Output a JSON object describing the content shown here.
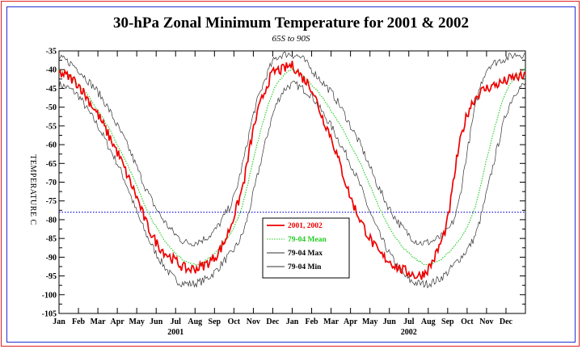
{
  "chart_data": {
    "type": "line",
    "title": "30-hPa Zonal Minimum Temperature for 2001 & 2002",
    "subtitle": "65S to 90S",
    "ylabel": "TEMPERATURE C",
    "xlabel": "",
    "ylim": [
      -105,
      -35
    ],
    "yticks": [
      -35,
      -40,
      -45,
      -50,
      -55,
      -60,
      -65,
      -70,
      -75,
      -80,
      -85,
      -90,
      -95,
      -100,
      -105
    ],
    "x_month_labels": [
      "Jan",
      "Feb",
      "Mar",
      "Apr",
      "May",
      "Jun",
      "Jul",
      "Aug",
      "Sep",
      "Oct",
      "Nov",
      "Dec",
      "Jan",
      "Feb",
      "Mar",
      "Apr",
      "May",
      "Jun",
      "Jul",
      "Aug",
      "Sep",
      "Oct",
      "Nov",
      "Dec"
    ],
    "year_labels": [
      "2001",
      "2002"
    ],
    "reference_line": -78,
    "legend_position": "center",
    "grid": false,
    "x_months": [
      0,
      0.5,
      1,
      1.5,
      2,
      2.5,
      3,
      3.5,
      4,
      4.5,
      5,
      5.5,
      6,
      6.5,
      7,
      7.5,
      8,
      8.5,
      9,
      9.5,
      10,
      10.5,
      11,
      11.5,
      12,
      12.5,
      13,
      13.5,
      14,
      14.5,
      15,
      15.5,
      16,
      16.5,
      17,
      17.5,
      18,
      18.5,
      19,
      19.5,
      20,
      20.5,
      21,
      21.5,
      22,
      22.5,
      23,
      23.5,
      24
    ],
    "series": [
      {
        "name": "2001, 2002",
        "color": "#ee0000",
        "style": "solid",
        "values": [
          -41,
          -42,
          -44,
          -48,
          -52,
          -57,
          -62,
          -68,
          -74,
          -81,
          -86,
          -89,
          -91,
          -93,
          -93,
          -92,
          -90,
          -86,
          -79,
          -70,
          -56,
          -47,
          -41,
          -40,
          -39,
          -42,
          -45,
          -52,
          -58,
          -66,
          -74,
          -80,
          -85,
          -89,
          -91,
          -93,
          -94,
          -95,
          -93,
          -88,
          -80,
          -63,
          -52,
          -47,
          -45,
          -44,
          -43,
          -42,
          -42
        ]
      },
      {
        "name": "79-04 Mean",
        "color": "#22cc22",
        "style": "dotted",
        "values": [
          -40,
          -41.5,
          -44,
          -47,
          -51,
          -55,
          -60,
          -65,
          -71,
          -77,
          -82,
          -86,
          -89,
          -91,
          -92,
          -91,
          -89,
          -86,
          -82,
          -75,
          -64,
          -54,
          -46,
          -42,
          -40,
          -41.5,
          -44,
          -47,
          -51,
          -55,
          -60,
          -65,
          -71,
          -77,
          -82,
          -86,
          -89,
          -91,
          -92,
          -91,
          -89,
          -86,
          -82,
          -75,
          -64,
          -54,
          -46,
          -42,
          -40
        ]
      },
      {
        "name": "79-04 Max",
        "color": "#333333",
        "style": "solid",
        "values": [
          -37,
          -38,
          -40,
          -43,
          -46,
          -50,
          -55,
          -60,
          -66,
          -72,
          -77,
          -81,
          -84,
          -86,
          -86,
          -85,
          -83,
          -79,
          -74,
          -64,
          -52,
          -44,
          -38,
          -36,
          -36,
          -37,
          -40,
          -43,
          -46,
          -50,
          -55,
          -60,
          -66,
          -72,
          -77,
          -81,
          -84,
          -86,
          -86,
          -85,
          -83,
          -77,
          -62,
          -48,
          -40,
          -38,
          -37,
          -36,
          -36
        ]
      },
      {
        "name": "79-04 Min",
        "color": "#333333",
        "style": "solid",
        "values": [
          -44,
          -45,
          -47,
          -51,
          -55,
          -60,
          -65,
          -71,
          -78,
          -84,
          -89,
          -93,
          -96,
          -97,
          -97,
          -96,
          -94,
          -91,
          -88,
          -83,
          -73,
          -62,
          -52,
          -46,
          -44,
          -45,
          -47,
          -51,
          -55,
          -60,
          -65,
          -71,
          -78,
          -84,
          -89,
          -93,
          -96,
          -97,
          -97,
          -96,
          -94,
          -91,
          -88,
          -83,
          -73,
          -62,
          -52,
          -46,
          -44
        ]
      }
    ]
  }
}
